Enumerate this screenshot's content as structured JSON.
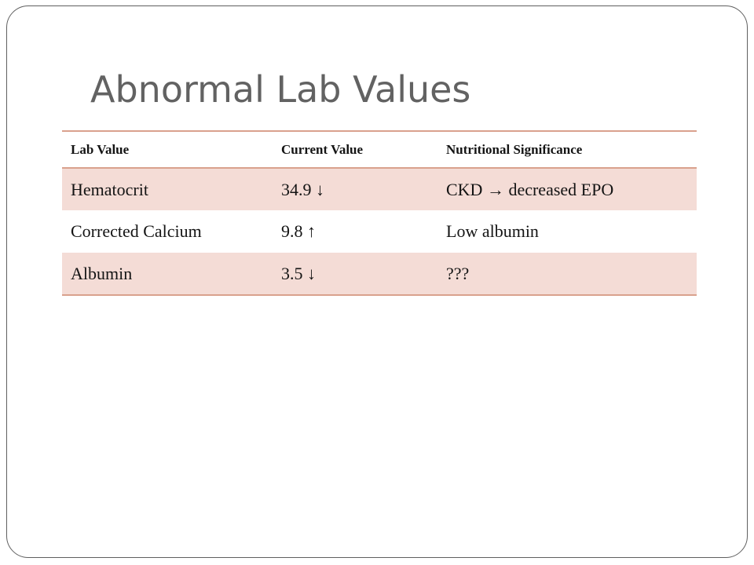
{
  "slide": {
    "title": "Abnormal Lab Values"
  },
  "table": {
    "headers": [
      "Lab Value",
      "Current Value",
      "Nutritional Significance"
    ],
    "rows": [
      [
        "Hematocrit",
        "34.9 ↓",
        "CKD → decreased EPO"
      ],
      [
        "Corrected Calcium",
        "9.8 ↑",
        "Low albumin"
      ],
      [
        "Albumin",
        "3.5 ↓",
        "???"
      ]
    ]
  },
  "colors": {
    "band": "#f4dcd6",
    "rule": "#d9a18d",
    "title": "#626262"
  }
}
